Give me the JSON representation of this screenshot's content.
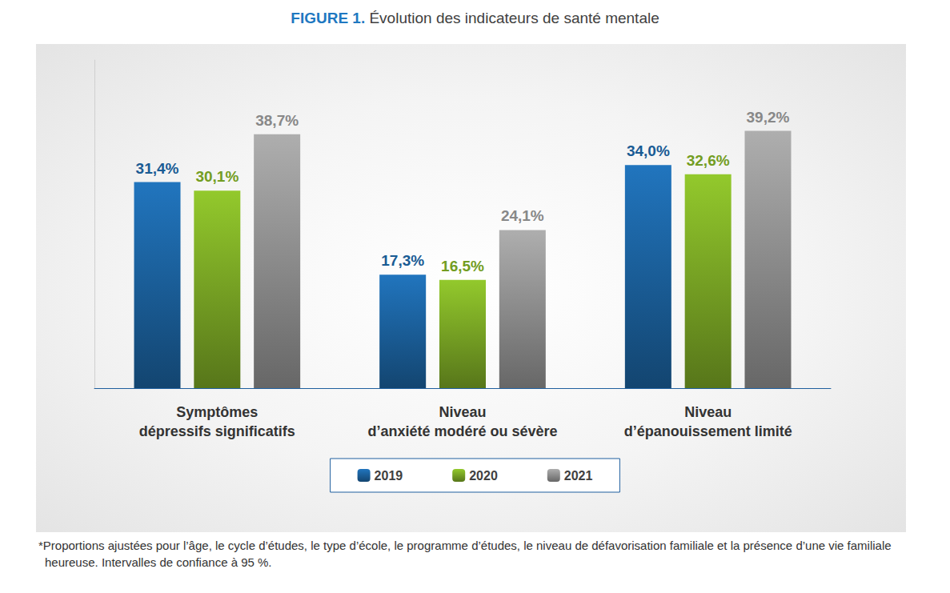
{
  "chart_data": {
    "type": "bar",
    "title": "FIGURE 1. Évolution des indicateurs de santé mentale",
    "categories": [
      "Symptômes\ndépressifs significatifs",
      "Niveau\nd’anxiété modéré ou sévère",
      "Niveau\nd’épanouissement limité"
    ],
    "series": [
      {
        "name": "2019",
        "color": "#1f6fb5",
        "values": [
          31.4,
          17.3,
          34.0
        ],
        "value_labels": [
          "31,4%",
          "17,3%",
          "34,0%"
        ]
      },
      {
        "name": "2020",
        "color": "#8cbf2a",
        "values": [
          30.1,
          16.5,
          32.6
        ],
        "value_labels": [
          "30,1%",
          "16,5%",
          "32,6%"
        ]
      },
      {
        "name": "2021",
        "color": "#a6a6a6",
        "values": [
          38.7,
          24.1,
          39.2
        ],
        "value_labels": [
          "38,7%",
          "24,1%",
          "39,2%"
        ]
      }
    ],
    "ylim": [
      0,
      50
    ],
    "yticks": [],
    "tick_labels": "x",
    "grid": false,
    "legend": "bottom",
    "data_labels": true,
    "footnote": "*Proportions ajustées pour l’âge, le cycle d’études, le type d’école, le programme d’études, le niveau de défavorisation familiale et la présence d’une vie familiale heureuse. Intervalles de confiance à 95 %."
  }
}
